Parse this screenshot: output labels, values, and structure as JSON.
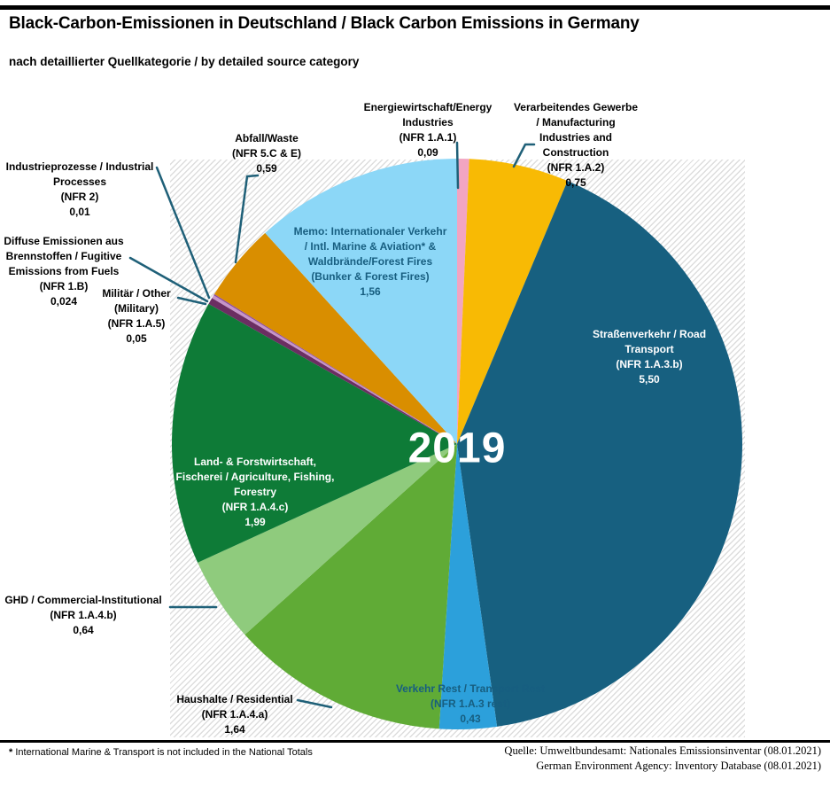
{
  "header": {
    "title": "Black-Carbon-Emissionen in Deutschland / Black Carbon Emissions in Germany",
    "subtitle": "nach detaillierter Quellkategorie / by detailed source category"
  },
  "footnote": {
    "marker": "*",
    "text": " International Marine & Transport is not included in the National Totals"
  },
  "source": {
    "line1": "Quelle: Umweltbundesamt: Nationales Emissionsinventar (08.01.2021)",
    "line2": "German Environment Agency: Inventory Database (08.01.2021)"
  },
  "chart_data": {
    "type": "pie",
    "title": "Black-Carbon-Emissionen in Deutschland / Black Carbon Emissions in Germany",
    "subtitle": "nach detaillierter Quellkategorie / by detailed source category",
    "center_label": "2019",
    "direction": "clockwise",
    "start_angle_deg": 0,
    "legend_position": "none",
    "colors": {
      "leader_line": "#1F6078",
      "dark_blue_text": "#175E80"
    },
    "segments": [
      {
        "id": "energy-industries",
        "name": "Energiewirtschaft/Energy Industries",
        "nfr": "NFR 1.A.1",
        "value": 0.09,
        "value_label": "0,09",
        "color": "#F2A5C2",
        "label_lines": [
          "Energiewirtschaft/Energy",
          "Industries",
          "(NFR 1.A.1)",
          "0,09"
        ]
      },
      {
        "id": "manufacturing",
        "name": "Verarbeitendes Gewerbe / Manufacturing Industries and Construction",
        "nfr": "NFR 1.A.2",
        "value": 0.75,
        "value_label": "0,75",
        "color": "#F8BA04",
        "label_lines": [
          "Verarbeitendes Gewerbe",
          "/ Manufacturing",
          "Industries and",
          "Construction",
          "(NFR 1.A.2)",
          "0,75"
        ]
      },
      {
        "id": "road-transport",
        "name": "Straßenverkehr / Road Transport",
        "nfr": "NFR 1.A.3.b",
        "value": 5.5,
        "value_label": "5,50",
        "color": "#176080",
        "label_lines": [
          "Straßenverkehr / Road",
          "Transport",
          "(NFR 1.A.3.b)",
          "5,50"
        ]
      },
      {
        "id": "transport-rest",
        "name": "Verkehr Rest / Transport Rest",
        "nfr": "NFR 1.A.3 rest",
        "value": 0.43,
        "value_label": "0,43",
        "color": "#2CA0DB",
        "label_lines": [
          "Verkehr Rest / Transport Rest",
          "(NFR 1.A.3 rest)",
          "0,43"
        ]
      },
      {
        "id": "residential",
        "name": "Haushalte / Residential",
        "nfr": "NFR 1.A.4.a",
        "value": 1.64,
        "value_label": "1,64",
        "color": "#60AB36",
        "label_lines": [
          "Haushalte / Residential",
          "(NFR 1.A.4.a)",
          "1,64"
        ]
      },
      {
        "id": "commercial-institutional",
        "name": "GHD / Commercial-Institutional",
        "nfr": "NFR 1.A.4.b",
        "value": 0.64,
        "value_label": "0,64",
        "color": "#8FCB7D",
        "label_lines": [
          "GHD / Commercial-Institutional",
          "(NFR 1.A.4.b)",
          "0,64"
        ]
      },
      {
        "id": "agriculture-fishing-forestry",
        "name": "Land- & Forstwirtschaft, Fischerei / Agriculture, Fishing, Forestry",
        "nfr": "NFR 1.A.4.c",
        "value": 1.99,
        "value_label": "1,99",
        "color": "#0E7B37",
        "label_lines": [
          "Land- & Forstwirtschaft,",
          "Fischerei / Agriculture, Fishing,",
          "Forestry",
          "(NFR 1.A.4.c)",
          "1,99"
        ]
      },
      {
        "id": "military",
        "name": "Militär / Other (Military)",
        "nfr": "NFR 1.A.5",
        "value": 0.05,
        "value_label": "0,05",
        "color": "#6B2E62",
        "label_lines": [
          "Militär / Other",
          "(Military)",
          "(NFR 1.A.5)",
          "0,05"
        ]
      },
      {
        "id": "fugitive-emissions",
        "name": "Diffuse Emissionen aus Brennstoffen / Fugitive Emissions from Fuels",
        "nfr": "NFR 1.B",
        "value": 0.024,
        "value_label": "0,024",
        "color": "#C795C9",
        "label_lines": [
          "Diffuse Emissionen aus",
          "Brennstoffen / Fugitive",
          "Emissions from Fuels",
          "(NFR 1.B)",
          "0,024"
        ]
      },
      {
        "id": "industrial-processes",
        "name": "Industrieprozesse / Industrial Processes",
        "nfr": "NFR 2",
        "value": 0.01,
        "value_label": "0,01",
        "color": "#8E4D9E",
        "label_lines": [
          "Industrieprozesse / Industrial",
          "Processes",
          "(NFR 2)",
          "0,01"
        ]
      },
      {
        "id": "waste",
        "name": "Abfall/Waste",
        "nfr": "NFR 5.C & E",
        "value": 0.59,
        "value_label": "0,59",
        "color": "#D98E00",
        "label_lines": [
          "Abfall/Waste",
          "(NFR 5.C & E)",
          "0,59"
        ]
      },
      {
        "id": "memo-bunker-forest-fires",
        "name": "Memo: Internationaler Verkehr / Intl. Marine & Aviation* & Waldbrände/Forest Fires (Bunker & Forest Fires)",
        "nfr": "Bunker & Forest Fires",
        "value": 1.56,
        "value_label": "1,56",
        "color": "#8CD7F7",
        "label_lines": [
          "Memo: Internationaler Verkehr",
          "/ Intl. Marine & Aviation* &",
          "Waldbrände/Forest Fires",
          "(Bunker & Forest Fires)",
          "1,56"
        ]
      }
    ]
  }
}
